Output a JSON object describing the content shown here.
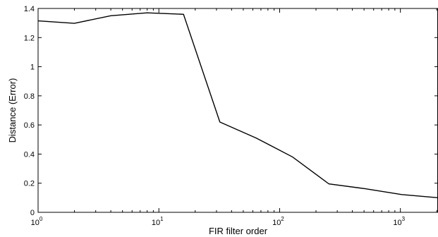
{
  "chart_data": {
    "type": "line",
    "title": "",
    "xlabel": "FIR filter order",
    "ylabel": "Distance (Error)",
    "xscale": "log",
    "xlim": [
      1,
      2048
    ],
    "ylim": [
      0,
      1.4
    ],
    "grid": false,
    "line_color": "#000000",
    "x_ticks": [
      {
        "value": 1,
        "base": "10",
        "exp": "0"
      },
      {
        "value": 10,
        "base": "10",
        "exp": "1"
      },
      {
        "value": 100,
        "base": "10",
        "exp": "2"
      },
      {
        "value": 1000,
        "base": "10",
        "exp": "3"
      }
    ],
    "y_ticks": [
      {
        "value": 0,
        "label": "0"
      },
      {
        "value": 0.2,
        "label": "0.2"
      },
      {
        "value": 0.4,
        "label": "0.4"
      },
      {
        "value": 0.6,
        "label": "0.6"
      },
      {
        "value": 0.8,
        "label": "0.8"
      },
      {
        "value": 1,
        "label": "1"
      },
      {
        "value": 1.2,
        "label": "1.2"
      },
      {
        "value": 1.4,
        "label": "1.4"
      }
    ],
    "x": [
      1,
      2,
      4,
      8,
      16,
      32,
      64,
      128,
      256,
      512,
      1024,
      2048
    ],
    "series": [
      {
        "values": [
          1.315,
          1.298,
          1.35,
          1.37,
          1.36,
          0.62,
          0.51,
          0.38,
          0.195,
          0.162,
          0.122,
          0.1
        ]
      }
    ]
  }
}
